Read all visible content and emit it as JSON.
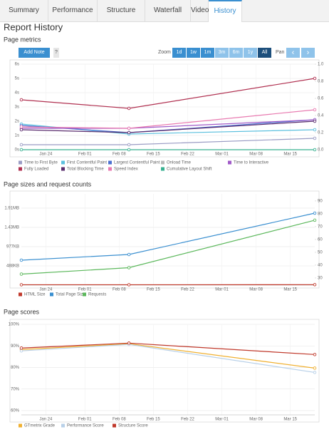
{
  "tabs": [
    "Summary",
    "Performance",
    "Structure",
    "Waterfall",
    "Video",
    "History"
  ],
  "active_tab": 5,
  "header": {
    "title": "Report History"
  },
  "toolbar": {
    "add_note": "Add Note",
    "help": "?",
    "zoom_label": "Zoom",
    "zoom_options": [
      "1d",
      "1w",
      "1m",
      "3m",
      "6m",
      "1y",
      "All"
    ],
    "zoom_active": 6,
    "zoom_disabled": [
      3,
      4,
      5
    ],
    "pan_label": "Pan"
  },
  "chart_data": [
    {
      "type": "line",
      "title": "Page metrics",
      "x": [
        19,
        41,
        79
      ],
      "xlim": [
        19,
        79
      ],
      "xticks": [
        {
          "value": 24,
          "label": "Jan 24"
        },
        {
          "value": 32,
          "label": "Feb 01"
        },
        {
          "value": 39,
          "label": "Feb 08"
        },
        {
          "value": 46,
          "label": "Feb 15"
        },
        {
          "value": 53,
          "label": "Feb 22"
        },
        {
          "value": 60,
          "label": "Mar 01"
        },
        {
          "value": 67,
          "label": "Mar 08"
        },
        {
          "value": 74,
          "label": "Mar 15"
        }
      ],
      "ylim": [
        0,
        6
      ],
      "yticks": [
        {
          "value": 0,
          "label": "0s"
        },
        {
          "value": 1,
          "label": "1s"
        },
        {
          "value": 2,
          "label": "2s"
        },
        {
          "value": 3,
          "label": "3s"
        },
        {
          "value": 4,
          "label": "4s"
        },
        {
          "value": 5,
          "label": "5s"
        },
        {
          "value": 6,
          "label": "6s"
        }
      ],
      "y2lim": [
        0,
        1
      ],
      "y2ticks": [
        {
          "value": 0,
          "label": "0.0"
        },
        0.2,
        0.4,
        0.6,
        0.8,
        {
          "value": 1,
          "label": "1.0"
        }
      ],
      "grid": true,
      "series": [
        {
          "name": "Time to First Byte",
          "color": "#9a9cc4",
          "values": [
            0.35,
            0.35,
            0.8
          ]
        },
        {
          "name": "First Contentful Paint",
          "color": "#5bc0de",
          "values": [
            1.8,
            1.1,
            1.4
          ]
        },
        {
          "name": "Largest Contentful Paint",
          "color": "#4a6fd0",
          "values": [
            1.7,
            1.2,
            2.1
          ]
        },
        {
          "name": "Onload Time",
          "color": "#bbbbbb",
          "values": [
            null,
            null,
            null
          ],
          "visible": false
        },
        {
          "name": "Time to Interactive",
          "color": "#a05ac8",
          "values": [
            1.5,
            1.5,
            2.1
          ]
        },
        {
          "name": "Fully Loaded",
          "color": "#b03050",
          "values": [
            3.5,
            2.9,
            5.0
          ]
        },
        {
          "name": "Total Blocking Time",
          "color": "#5a2d6e",
          "values": [
            1.4,
            1.2,
            2.0
          ]
        },
        {
          "name": "Speed Index",
          "color": "#e87ab0",
          "values": [
            1.6,
            1.5,
            2.8
          ]
        },
        {
          "name": "Cumulative Layout Shift",
          "color": "#38b090",
          "values": [
            0,
            0,
            0
          ],
          "axis": "y2"
        }
      ]
    },
    {
      "type": "line",
      "title": "Page sizes and request counts",
      "x": [
        19,
        41,
        79
      ],
      "xlim": [
        19,
        79
      ],
      "xticks": [
        {
          "value": 24,
          "label": "Jan 24"
        },
        {
          "value": 32,
          "label": "Feb 01"
        },
        {
          "value": 39,
          "label": "Feb 08"
        },
        {
          "value": 46,
          "label": "Feb 15"
        },
        {
          "value": 53,
          "label": "Feb 22"
        },
        {
          "value": 60,
          "label": "Mar 01"
        },
        {
          "value": 67,
          "label": "Mar 08"
        },
        {
          "value": 74,
          "label": "Mar 15"
        }
      ],
      "ylim": [
        0,
        2313
      ],
      "yticks": [
        {
          "value": 488,
          "label": "488KB"
        },
        {
          "value": 977,
          "label": "977KB"
        },
        {
          "value": 1465,
          "label": "1.43MB"
        },
        {
          "value": 1953,
          "label": "1.91MB"
        }
      ],
      "y2lim": [
        24.4,
        95.5
      ],
      "y2ticks": [
        30,
        40,
        50,
        60,
        70,
        80,
        90
      ],
      "grid": true,
      "series": [
        {
          "name": "HTML Size",
          "color": "#c0392b",
          "values": [
            10,
            10,
            12
          ]
        },
        {
          "name": "Total Page Size",
          "color": "#3a8fd0",
          "values": [
            633,
            777,
            1825
          ]
        },
        {
          "name": "Requests",
          "color": "#5cb85c",
          "values": [
            33,
            38,
            75
          ],
          "axis": "y2"
        }
      ]
    },
    {
      "type": "line",
      "title": "Page scores",
      "x": [
        19,
        41,
        79
      ],
      "xlim": [
        19,
        79
      ],
      "xticks": [
        {
          "value": 24,
          "label": "Jan 24"
        },
        {
          "value": 32,
          "label": "Feb 01"
        },
        {
          "value": 39,
          "label": "Feb 08"
        },
        {
          "value": 46,
          "label": "Feb 15"
        },
        {
          "value": 53,
          "label": "Feb 22"
        },
        {
          "value": 60,
          "label": "Mar 01"
        },
        {
          "value": 67,
          "label": "Mar 08"
        },
        {
          "value": 74,
          "label": "Mar 15"
        }
      ],
      "ylim": [
        58,
        100
      ],
      "yticks": [
        {
          "value": 60,
          "label": "60%"
        },
        {
          "value": 70,
          "label": "70%"
        },
        {
          "value": 80,
          "label": "80%"
        },
        {
          "value": 90,
          "label": "90%"
        },
        {
          "value": 100,
          "label": "100%"
        }
      ],
      "grid": true,
      "series": [
        {
          "name": "GTmetrix Grade",
          "color": "#f0b030",
          "values": [
            88.3,
            91,
            79.7
          ]
        },
        {
          "name": "Performance Score",
          "color": "#b8d0e8",
          "values": [
            87.7,
            90.7,
            77.7
          ]
        },
        {
          "name": "Structure Score",
          "color": "#c0392b",
          "values": [
            89,
            91.3,
            86
          ]
        }
      ]
    }
  ]
}
